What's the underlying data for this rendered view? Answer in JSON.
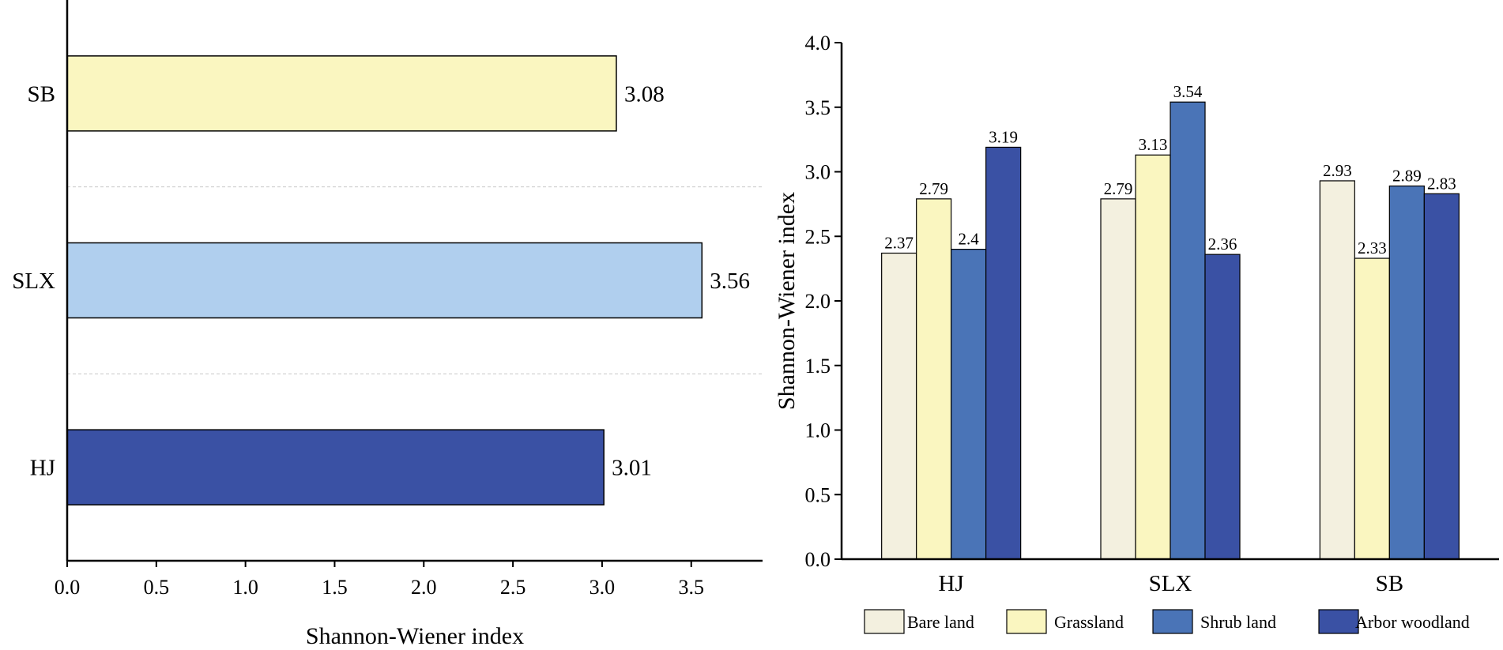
{
  "chart_data": [
    {
      "type": "bar",
      "orientation": "horizontal",
      "categories": [
        "HJ",
        "SLX",
        "SB"
      ],
      "values": [
        3.01,
        3.56,
        3.08
      ],
      "colors": [
        "#3a51a4",
        "#b0cfee",
        "#faf6c0"
      ],
      "data_labels": [
        "3.01",
        "3.56",
        "3.08"
      ],
      "xlabel": "Shannon-Wiener index",
      "ylabel": "",
      "xlim": [
        0,
        3.9
      ],
      "xticks": [
        "0.0",
        "0.5",
        "1.0",
        "1.5",
        "2.0",
        "2.5",
        "3.0",
        "3.5"
      ],
      "grid": "dashed separators between categories"
    },
    {
      "type": "bar",
      "orientation": "vertical",
      "categories": [
        "HJ",
        "SLX",
        "SB"
      ],
      "series": [
        {
          "name": "Bare land",
          "color": "#f3f0df",
          "values": [
            2.37,
            2.79,
            2.93
          ],
          "labels": [
            "2.37",
            "2.79",
            "2.93"
          ]
        },
        {
          "name": "Grassland",
          "color": "#faf6c0",
          "values": [
            2.79,
            3.13,
            2.33
          ],
          "labels": [
            "2.79",
            "3.13",
            "2.33"
          ]
        },
        {
          "name": "Shrub land",
          "color": "#4a74b7",
          "values": [
            2.4,
            3.54,
            2.89
          ],
          "labels": [
            "2.4",
            "3.54",
            "2.89"
          ]
        },
        {
          "name": "Arbor woodland",
          "color": "#3a51a4",
          "values": [
            3.19,
            2.36,
            2.83
          ],
          "labels": [
            "3.19",
            "2.36",
            "2.83"
          ]
        }
      ],
      "xlabel": "",
      "ylabel": "Shannon-Wiener index",
      "ylim": [
        0,
        4.0
      ],
      "yticks": [
        "0.0",
        "0.5",
        "1.0",
        "1.5",
        "2.0",
        "2.5",
        "3.0",
        "3.5",
        "4.0"
      ],
      "legend": "bottom"
    }
  ]
}
